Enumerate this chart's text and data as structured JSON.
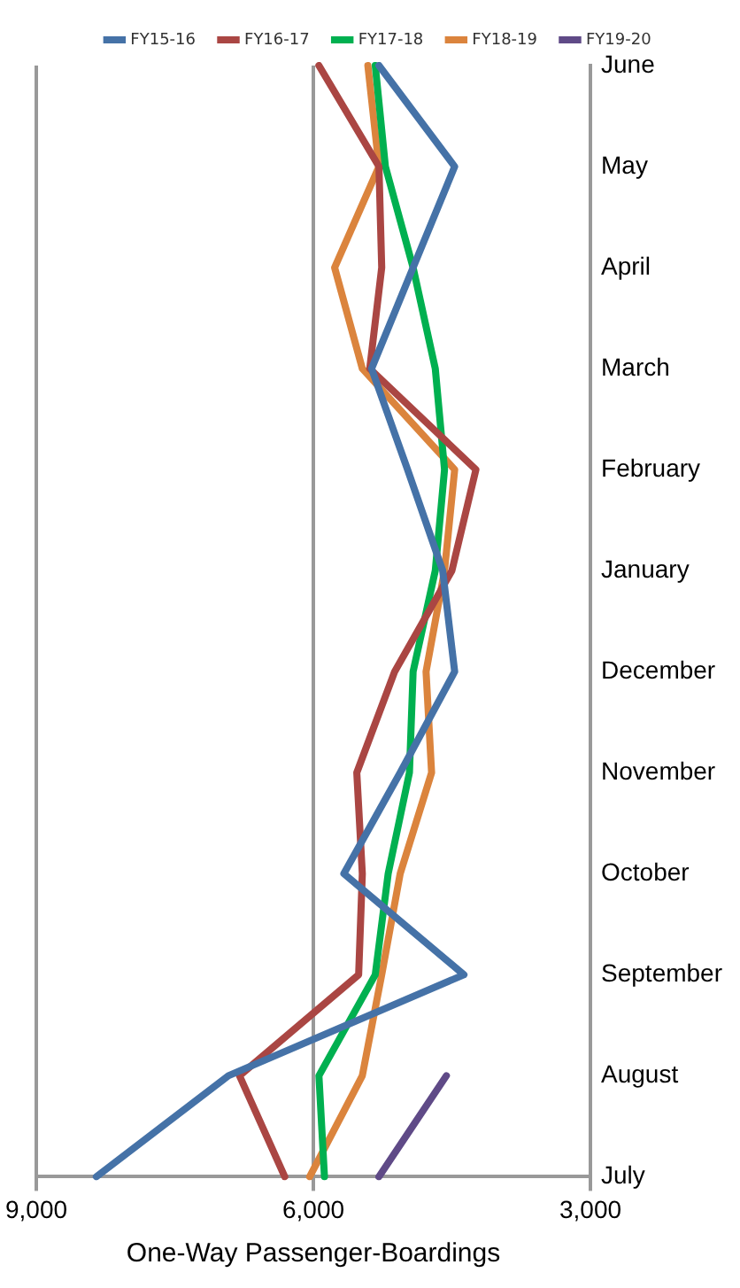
{
  "chart_data": {
    "type": "line",
    "orientation": "horizontal",
    "xlabel": "One-Way Passenger-Boardings",
    "categories": [
      "June",
      "May",
      "April",
      "March",
      "February",
      "January",
      "December",
      "November",
      "October",
      "September",
      "August",
      "July"
    ],
    "series": [
      {
        "name": "FY15-16",
        "color": "#4572a7",
        "values": [
          5290,
          4470,
          4920,
          5370,
          4980,
          4600,
          4470,
          5060,
          5670,
          4370,
          6920,
          8350
        ]
      },
      {
        "name": "FY16-17",
        "color": "#aa4643",
        "values": [
          5940,
          5290,
          5260,
          5390,
          4240,
          4500,
          5120,
          5530,
          5470,
          5510,
          6800,
          6310
        ]
      },
      {
        "name": "FY17-18",
        "color": "#00b050",
        "values": [
          5330,
          5220,
          4920,
          4680,
          4580,
          4680,
          4920,
          4960,
          5190,
          5330,
          5940,
          5880
        ]
      },
      {
        "name": "FY18-19",
        "color": "#db843d",
        "values": [
          5410,
          5290,
          5770,
          5470,
          4470,
          4580,
          4780,
          4720,
          5060,
          5260,
          5470,
          6040
        ]
      },
      {
        "name": "FY19-20",
        "color": "#5f4a87",
        "values": [
          null,
          null,
          null,
          null,
          null,
          null,
          null,
          null,
          null,
          null,
          4560,
          5290
        ]
      }
    ],
    "xlim": [
      9000,
      3000
    ],
    "xticks": [
      {
        "value": 9000,
        "label": "9,000"
      },
      {
        "value": 6000,
        "label": "6,000"
      },
      {
        "value": 3000,
        "label": "3,000"
      }
    ],
    "grid": "x",
    "legend": "top",
    "marker": "none",
    "line_style": "solid"
  }
}
